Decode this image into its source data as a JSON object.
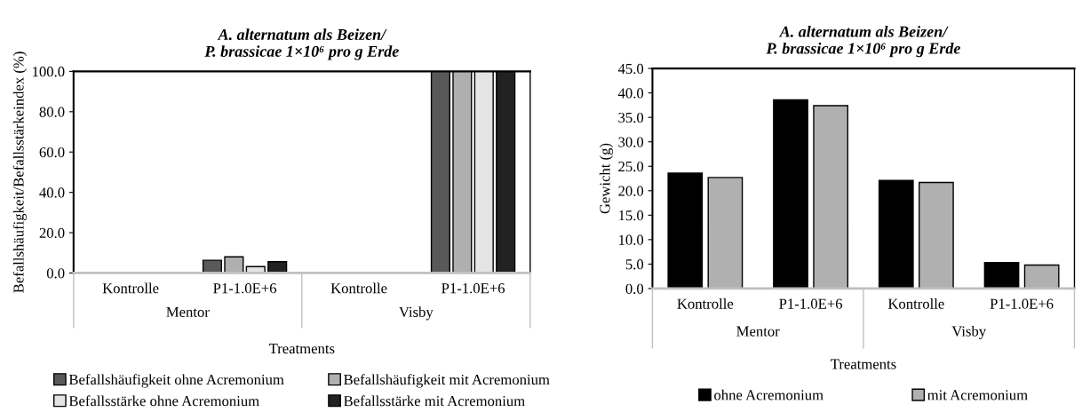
{
  "chart_data": [
    {
      "type": "bar",
      "title": "A. alternatum als Beizen/\nP. brassicae 1×10⁶ pro g Erde",
      "xlabel": "Treatments",
      "ylabel": "Befallshäufigkeit/Befallsstärkeindex (%)",
      "categories": [
        "Kontrolle",
        "P1-1.0E+6",
        "Kontrolle",
        "P1-1.0E+6"
      ],
      "annotations": [
        "Mentor",
        "Visby"
      ],
      "series": [
        {
          "name": "Befallshäufigkeit ohne Acremonium",
          "color": "#595959",
          "values": [
            0,
            6.3,
            0,
            100
          ]
        },
        {
          "name": "Befallshäufigkeit mit Acremonium",
          "color": "#afafaf",
          "values": [
            0,
            8.0,
            0,
            100
          ]
        },
        {
          "name": "Befallsstärke ohne Acremonium",
          "color": "#e4e4e4",
          "values": [
            0,
            3.2,
            0,
            100
          ]
        },
        {
          "name": "Befallsstärke mit Acremonium",
          "color": "#222222",
          "values": [
            0,
            5.6,
            0,
            100
          ]
        }
      ],
      "ylim": [
        0,
        100
      ],
      "yticks": [
        {
          "value": 0,
          "label": "0.0"
        },
        {
          "value": 20,
          "label": "20.0"
        },
        {
          "value": 40,
          "label": "40.0"
        },
        {
          "value": 60,
          "label": "60.0"
        },
        {
          "value": 80,
          "label": "80.0"
        },
        {
          "value": 100,
          "label": "100.0"
        }
      ],
      "legend": "bottom",
      "grid": false
    },
    {
      "type": "bar",
      "title": "A. alternatum als Beizen/\nP. brassicae 1×10⁶ pro g Erde",
      "xlabel": "Treatments",
      "ylabel": "Gewicht (g)",
      "categories": [
        "Kontrolle",
        "P1-1.0E+6",
        "Kontrolle",
        "P1-1.0E+6"
      ],
      "annotations": [
        "Mentor",
        "Visby"
      ],
      "series": [
        {
          "name": "ohne Acremonium",
          "color": "#000000",
          "values": [
            23.6,
            38.6,
            22.1,
            5.3
          ]
        },
        {
          "name": "mit Acremonium",
          "color": "#b0b0b0",
          "values": [
            22.7,
            37.4,
            21.7,
            4.8
          ]
        }
      ],
      "ylim": [
        0,
        45
      ],
      "yticks": [
        {
          "value": 0,
          "label": "0.0"
        },
        {
          "value": 5,
          "label": "5.0"
        },
        {
          "value": 10,
          "label": "10.0"
        },
        {
          "value": 15,
          "label": "15.0"
        },
        {
          "value": 20,
          "label": "20.0"
        },
        {
          "value": 25,
          "label": "25.0"
        },
        {
          "value": 30,
          "label": "30.0"
        },
        {
          "value": 35,
          "label": "35.0"
        },
        {
          "value": 40,
          "label": "40.0"
        },
        {
          "value": 45,
          "label": "45.0"
        }
      ],
      "legend": "bottom",
      "grid": false
    }
  ]
}
